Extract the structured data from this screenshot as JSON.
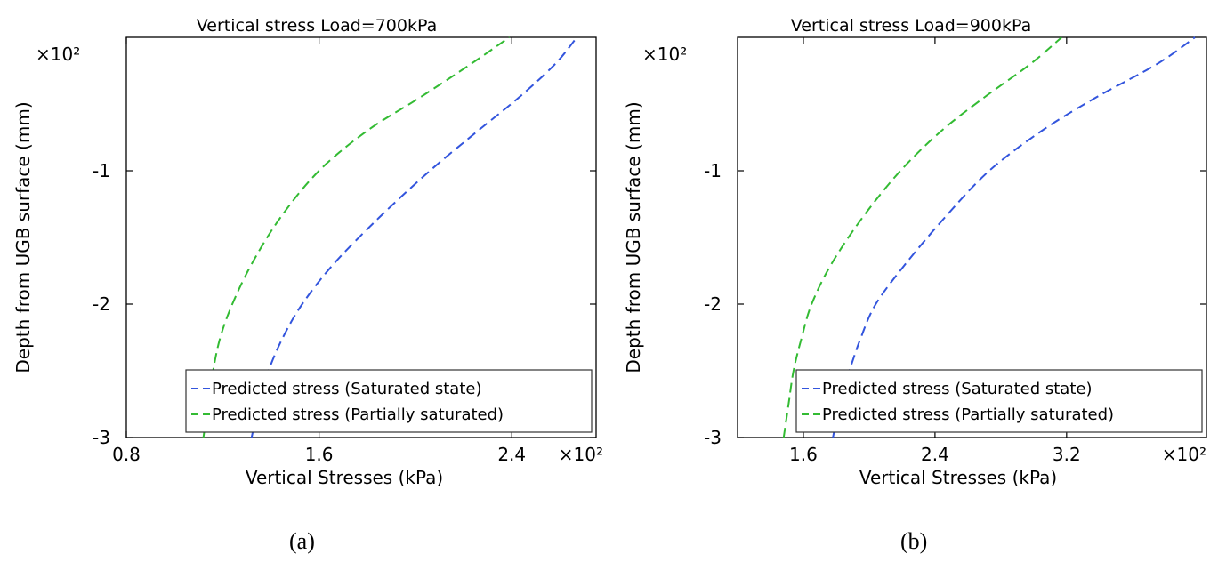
{
  "chart_data": [
    {
      "type": "line",
      "title": "Vertical stress Load=700kPa",
      "xlabel": "Vertical Stresses (kPa)",
      "ylabel": "Depth from UGB surface (mm)",
      "x_multiplier": "×10²",
      "y_multiplier": "×10²",
      "xlim": [
        0.8,
        2.75
      ],
      "ylim": [
        -3,
        0
      ],
      "xticks": [
        0.8,
        1.6,
        2.4
      ],
      "xtick_labels": [
        "0.8",
        "1.6",
        "2.4"
      ],
      "yticks": [
        -1,
        -2,
        -3
      ],
      "ytick_labels": [
        "-1",
        "-2",
        "-3"
      ],
      "grid": false,
      "legend_position": "bottom-right",
      "caption": "(a)",
      "series": [
        {
          "name": "Predicted stress (Saturated state)",
          "color": "#3355dd",
          "x": [
            1.32,
            1.35,
            1.39,
            1.45,
            1.53,
            1.66,
            1.85,
            2.06,
            2.26,
            2.43,
            2.58,
            2.67
          ],
          "y": [
            -3.0,
            -2.75,
            -2.5,
            -2.25,
            -2.0,
            -1.7,
            -1.35,
            -1.0,
            -0.7,
            -0.45,
            -0.2,
            0.0
          ]
        },
        {
          "name": "Predicted stress (Partially saturated)",
          "color": "#33bb33",
          "x": [
            1.12,
            1.14,
            1.16,
            1.19,
            1.24,
            1.32,
            1.44,
            1.6,
            1.8,
            2.02,
            2.23,
            2.39
          ],
          "y": [
            -3.0,
            -2.75,
            -2.5,
            -2.25,
            -2.0,
            -1.7,
            -1.35,
            -1.0,
            -0.7,
            -0.45,
            -0.2,
            0.0
          ]
        }
      ]
    },
    {
      "type": "line",
      "title": "Vertical stress Load=900kPa",
      "xlabel": "Vertical Stresses (kPa)",
      "ylabel": "Depth from UGB surface (mm)",
      "x_multiplier": "×10²",
      "y_multiplier": "×10²",
      "xlim": [
        1.2,
        4.05
      ],
      "ylim": [
        -3,
        0
      ],
      "xticks": [
        1.6,
        2.4,
        3.2
      ],
      "xtick_labels": [
        "1.6",
        "2.4",
        "3.2"
      ],
      "yticks": [
        -1,
        -2,
        -3
      ],
      "ytick_labels": [
        "-1",
        "-2",
        "-3"
      ],
      "grid": false,
      "legend_position": "bottom-right",
      "caption": "(b)",
      "series": [
        {
          "name": "Predicted stress (Saturated state)",
          "color": "#3355dd",
          "x": [
            1.78,
            1.82,
            1.88,
            1.95,
            2.04,
            2.22,
            2.46,
            2.73,
            3.05,
            3.38,
            3.75,
            3.98
          ],
          "y": [
            -3.0,
            -2.75,
            -2.5,
            -2.25,
            -2.0,
            -1.7,
            -1.35,
            -1.0,
            -0.7,
            -0.45,
            -0.2,
            0.0
          ]
        },
        {
          "name": "Predicted stress (Partially saturated)",
          "color": "#33bb33",
          "x": [
            1.48,
            1.51,
            1.54,
            1.59,
            1.65,
            1.77,
            1.96,
            2.19,
            2.44,
            2.7,
            2.98,
            3.17
          ],
          "y": [
            -3.0,
            -2.75,
            -2.5,
            -2.25,
            -2.0,
            -1.7,
            -1.35,
            -1.0,
            -0.7,
            -0.45,
            -0.2,
            0.0
          ]
        }
      ]
    }
  ]
}
